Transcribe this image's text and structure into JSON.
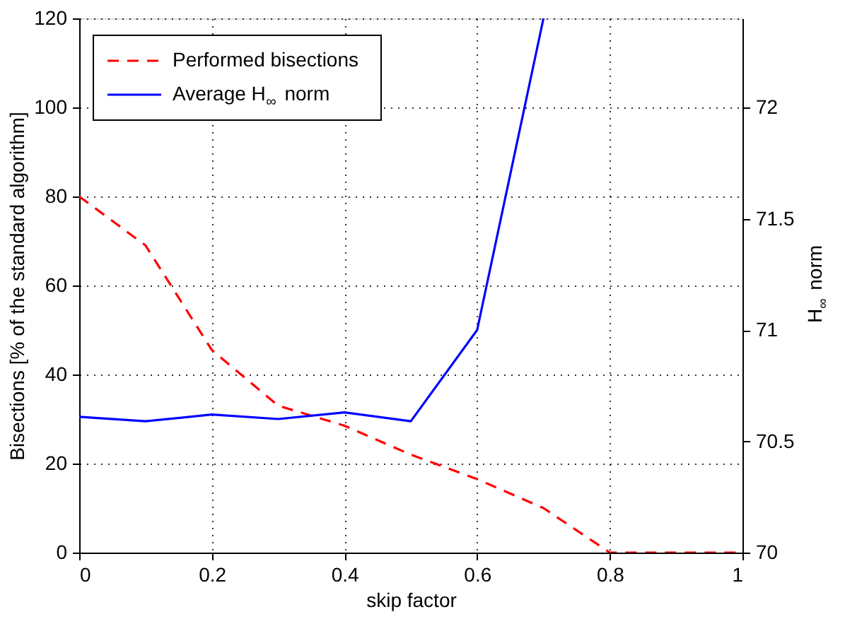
{
  "chart_data": {
    "type": "line",
    "xlabel": "skip factor",
    "ylabel": "Bisections [% of the standard algorithm]",
    "y2label": "H$_{∞}$ norm",
    "x": [
      0,
      0.1,
      0.2,
      0.3,
      0.4,
      0.5,
      0.6,
      0.7,
      0.8,
      0.9,
      1
    ],
    "series": [
      {
        "name": "Performed bisections",
        "color": "#ff0000",
        "line_style": "dashed",
        "values": [
          80,
          69,
          45.5,
          33,
          28.5,
          22,
          16.5,
          10,
          0,
          0,
          0
        ]
      },
      {
        "name": "Average H$_{∞}$ norm",
        "color": "#0000ff",
        "line_style": "solid",
        "axis": "y2",
        "values": [
          70.61,
          70.59,
          70.62,
          70.6,
          70.63,
          70.59,
          71.0,
          72.4,
          null,
          null,
          null
        ]
      }
    ],
    "xlim": [
      0,
      1
    ],
    "xticks": [
      0,
      0.2,
      0.4,
      0.6,
      0.8,
      1
    ],
    "ylim": [
      0,
      120
    ],
    "yticks": [
      0,
      20,
      40,
      60,
      80,
      100,
      120
    ],
    "y2lim": [
      70,
      72.4
    ],
    "y2ticks": [
      70,
      70.5,
      71,
      71.5,
      72
    ],
    "grid": true,
    "legend": "top left",
    "marker": "none"
  }
}
